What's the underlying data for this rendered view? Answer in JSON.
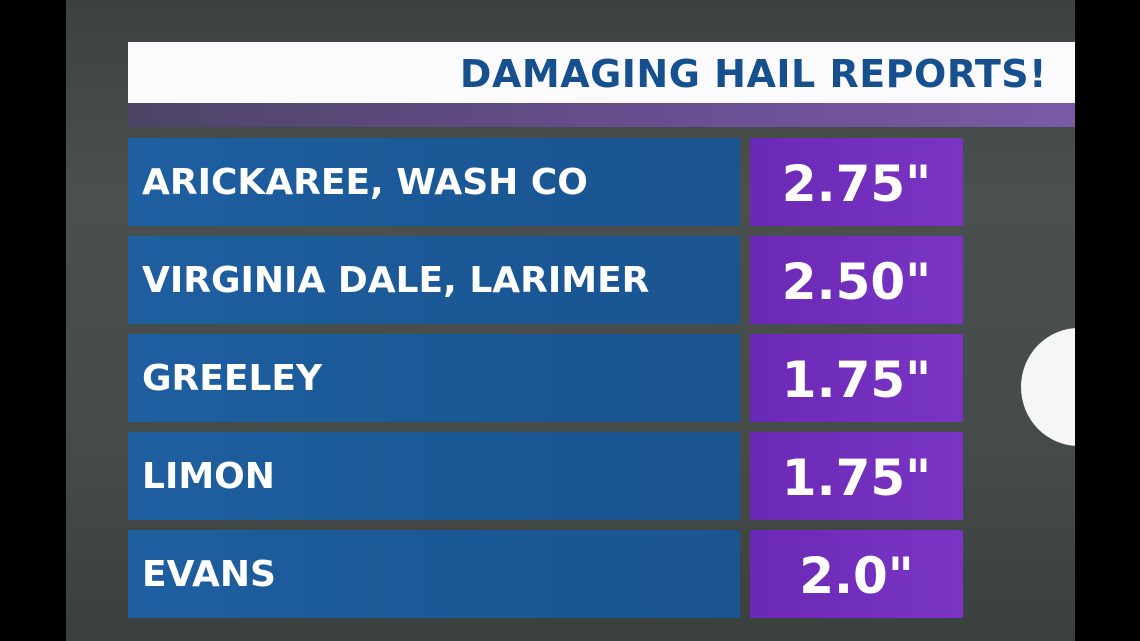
{
  "header": {
    "title": "DAMAGING HAIL REPORTS!"
  },
  "table": {
    "rows": [
      [
        "ARICKAREE, WASH CO",
        "2.75\""
      ],
      [
        "VIRGINIA DALE, LARIMER",
        "2.50\""
      ],
      [
        "GREELEY",
        "1.75\""
      ],
      [
        "LIMON",
        "1.75\""
      ],
      [
        "EVANS",
        "2.0\""
      ]
    ]
  }
}
